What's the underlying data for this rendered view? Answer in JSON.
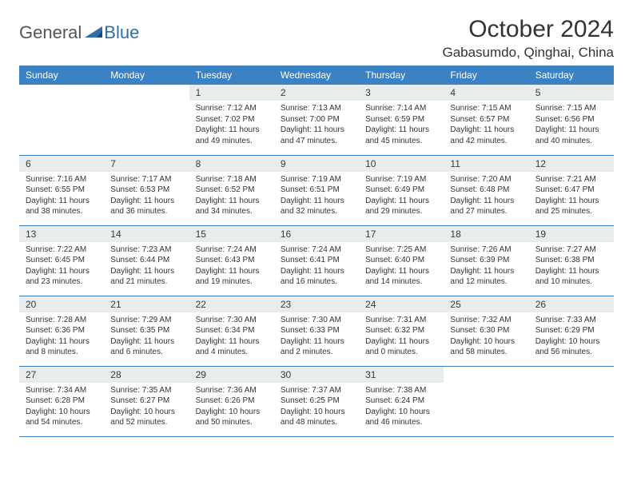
{
  "brand": {
    "general": "General",
    "blue": "Blue"
  },
  "title": "October 2024",
  "location": "Gabasumdo, Qinghai, China",
  "colors": {
    "header_bg": "#3b82c4",
    "header_text": "#ffffff",
    "daynum_bg": "#e8eced",
    "border": "#3b82c4",
    "body_text": "#333333",
    "brand_blue": "#2f6fa8"
  },
  "day_headers": [
    "Sunday",
    "Monday",
    "Tuesday",
    "Wednesday",
    "Thursday",
    "Friday",
    "Saturday"
  ],
  "weeks": [
    [
      null,
      null,
      {
        "n": "1",
        "sr": "7:12 AM",
        "ss": "7:02 PM",
        "dl": "11 hours and 49 minutes."
      },
      {
        "n": "2",
        "sr": "7:13 AM",
        "ss": "7:00 PM",
        "dl": "11 hours and 47 minutes."
      },
      {
        "n": "3",
        "sr": "7:14 AM",
        "ss": "6:59 PM",
        "dl": "11 hours and 45 minutes."
      },
      {
        "n": "4",
        "sr": "7:15 AM",
        "ss": "6:57 PM",
        "dl": "11 hours and 42 minutes."
      },
      {
        "n": "5",
        "sr": "7:15 AM",
        "ss": "6:56 PM",
        "dl": "11 hours and 40 minutes."
      }
    ],
    [
      {
        "n": "6",
        "sr": "7:16 AM",
        "ss": "6:55 PM",
        "dl": "11 hours and 38 minutes."
      },
      {
        "n": "7",
        "sr": "7:17 AM",
        "ss": "6:53 PM",
        "dl": "11 hours and 36 minutes."
      },
      {
        "n": "8",
        "sr": "7:18 AM",
        "ss": "6:52 PM",
        "dl": "11 hours and 34 minutes."
      },
      {
        "n": "9",
        "sr": "7:19 AM",
        "ss": "6:51 PM",
        "dl": "11 hours and 32 minutes."
      },
      {
        "n": "10",
        "sr": "7:19 AM",
        "ss": "6:49 PM",
        "dl": "11 hours and 29 minutes."
      },
      {
        "n": "11",
        "sr": "7:20 AM",
        "ss": "6:48 PM",
        "dl": "11 hours and 27 minutes."
      },
      {
        "n": "12",
        "sr": "7:21 AM",
        "ss": "6:47 PM",
        "dl": "11 hours and 25 minutes."
      }
    ],
    [
      {
        "n": "13",
        "sr": "7:22 AM",
        "ss": "6:45 PM",
        "dl": "11 hours and 23 minutes."
      },
      {
        "n": "14",
        "sr": "7:23 AM",
        "ss": "6:44 PM",
        "dl": "11 hours and 21 minutes."
      },
      {
        "n": "15",
        "sr": "7:24 AM",
        "ss": "6:43 PM",
        "dl": "11 hours and 19 minutes."
      },
      {
        "n": "16",
        "sr": "7:24 AM",
        "ss": "6:41 PM",
        "dl": "11 hours and 16 minutes."
      },
      {
        "n": "17",
        "sr": "7:25 AM",
        "ss": "6:40 PM",
        "dl": "11 hours and 14 minutes."
      },
      {
        "n": "18",
        "sr": "7:26 AM",
        "ss": "6:39 PM",
        "dl": "11 hours and 12 minutes."
      },
      {
        "n": "19",
        "sr": "7:27 AM",
        "ss": "6:38 PM",
        "dl": "11 hours and 10 minutes."
      }
    ],
    [
      {
        "n": "20",
        "sr": "7:28 AM",
        "ss": "6:36 PM",
        "dl": "11 hours and 8 minutes."
      },
      {
        "n": "21",
        "sr": "7:29 AM",
        "ss": "6:35 PM",
        "dl": "11 hours and 6 minutes."
      },
      {
        "n": "22",
        "sr": "7:30 AM",
        "ss": "6:34 PM",
        "dl": "11 hours and 4 minutes."
      },
      {
        "n": "23",
        "sr": "7:30 AM",
        "ss": "6:33 PM",
        "dl": "11 hours and 2 minutes."
      },
      {
        "n": "24",
        "sr": "7:31 AM",
        "ss": "6:32 PM",
        "dl": "11 hours and 0 minutes."
      },
      {
        "n": "25",
        "sr": "7:32 AM",
        "ss": "6:30 PM",
        "dl": "10 hours and 58 minutes."
      },
      {
        "n": "26",
        "sr": "7:33 AM",
        "ss": "6:29 PM",
        "dl": "10 hours and 56 minutes."
      }
    ],
    [
      {
        "n": "27",
        "sr": "7:34 AM",
        "ss": "6:28 PM",
        "dl": "10 hours and 54 minutes."
      },
      {
        "n": "28",
        "sr": "7:35 AM",
        "ss": "6:27 PM",
        "dl": "10 hours and 52 minutes."
      },
      {
        "n": "29",
        "sr": "7:36 AM",
        "ss": "6:26 PM",
        "dl": "10 hours and 50 minutes."
      },
      {
        "n": "30",
        "sr": "7:37 AM",
        "ss": "6:25 PM",
        "dl": "10 hours and 48 minutes."
      },
      {
        "n": "31",
        "sr": "7:38 AM",
        "ss": "6:24 PM",
        "dl": "10 hours and 46 minutes."
      },
      null,
      null
    ]
  ],
  "labels": {
    "sunrise": "Sunrise: ",
    "sunset": "Sunset: ",
    "daylight": "Daylight: "
  }
}
